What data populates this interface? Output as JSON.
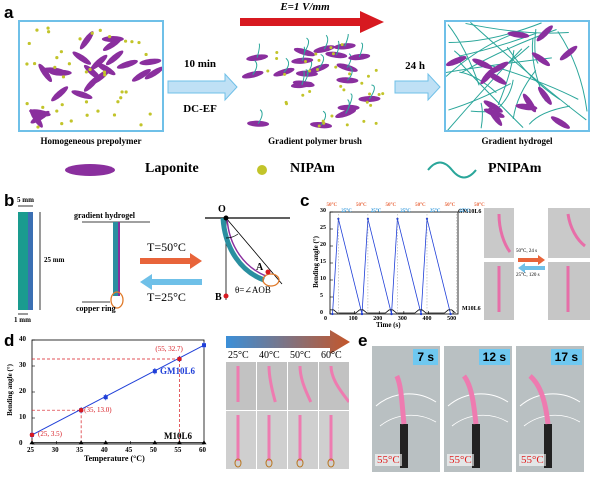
{
  "panels": {
    "a": "a",
    "b": "b",
    "c": "c",
    "d": "d",
    "e": "e"
  },
  "panel_a": {
    "caption_left": "Homogeneous prepolymer",
    "caption_mid": "Gradient polymer brush",
    "caption_right": "Gradient hydrogel",
    "step1_time": "10 min",
    "step1_method": "DC-EF",
    "field": "E=1 V/mm",
    "step2_time": "24 h",
    "colors": {
      "laponite": "#8a2f9e",
      "nipam": "#c2c42a",
      "pnipam": "#2aa69a",
      "box_border": "#6fc0e8",
      "field_arrow": "#d71920"
    }
  },
  "legend": {
    "laponite": "Laponite",
    "nipam": "NIPAm",
    "pnipam": "PNIPAm"
  },
  "panel_b": {
    "dim_top": "5 mm",
    "dim_side": "25 mm",
    "dim_bottom": "1 mm",
    "label_gradient": "gradient hydrogel",
    "label_ring": "copper ring",
    "temp_hot": "T=50°C",
    "temp_cold": "T=25°C",
    "point_o": "O",
    "point_a": "A",
    "point_b": "B",
    "angle_def": "θ=∠AOB"
  },
  "panel_c": {
    "ylabel": "Bending angle (°)",
    "xlabel": "Time (s)",
    "yticks": [
      "0",
      "5",
      "10",
      "15",
      "20",
      "25",
      "30"
    ],
    "xticks": [
      "0",
      "100",
      "200",
      "300",
      "400",
      "500"
    ],
    "temps": [
      "50°C",
      "25°C",
      "50°C",
      "25°C",
      "50°C",
      "25°C",
      "50°C",
      "25°C",
      "50°C",
      "25°C",
      "50°C"
    ],
    "series_top": "GM10L6",
    "series_bottom": "M10L6",
    "photo_top_arrow": "50°C, 24 s",
    "photo_bottom_arrow": "25°C, 120 s"
  },
  "chart_data": {
    "type": "line",
    "xlabel": "Temperature (°C)",
    "ylabel": "Bending angle (°)",
    "xlim": [
      25,
      60
    ],
    "ylim": [
      0,
      40
    ],
    "xticks": [
      "25",
      "30",
      "35",
      "40",
      "45",
      "50",
      "55",
      "60"
    ],
    "yticks": [
      "0",
      "10",
      "20",
      "30",
      "40"
    ],
    "series": [
      {
        "name": "GM10L6",
        "x": [
          25,
          35,
          40,
          50,
          55,
          60
        ],
        "y": [
          3.5,
          13.0,
          18.0,
          28.0,
          32.7,
          38.0
        ],
        "color": "#1f3fd8"
      },
      {
        "name": "M10L6",
        "x": [
          25,
          35,
          40,
          50,
          55,
          60
        ],
        "y": [
          0.5,
          0.5,
          0.5,
          0.5,
          0.5,
          0.5
        ],
        "color": "#000000"
      }
    ],
    "annotations": [
      "(25, 3.5)",
      "(35, 13.0)",
      "(55, 32.7)"
    ]
  },
  "panel_d_photos": {
    "temps": [
      "25°C",
      "40°C",
      "50°C",
      "60°C"
    ]
  },
  "panel_e": {
    "times": [
      "7 s",
      "12 s",
      "17 s"
    ],
    "temp": "55°C"
  }
}
